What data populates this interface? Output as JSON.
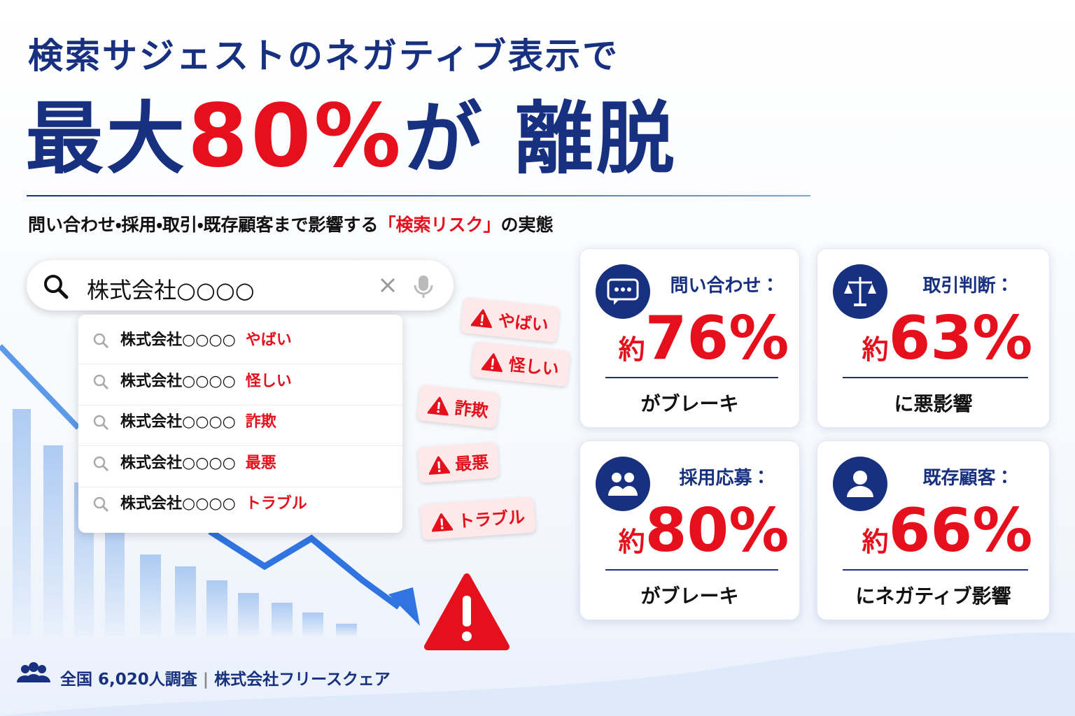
{
  "header": {
    "title": "検索サジェストのネガティブ表示で",
    "headline": {
      "pre": "最大",
      "highlight": "80%",
      "mid": "が",
      "post": "離脱"
    },
    "subtitle": {
      "pre": "問い合わせ・採用・取引・既存顧客まで影響する",
      "highlight": "「検索リスク」",
      "post": "の実態"
    }
  },
  "search": {
    "query": "株式会社○○○○",
    "suggestions": [
      {
        "base": "株式会社○○○○",
        "keyword": "やばい"
      },
      {
        "base": "株式会社○○○○",
        "keyword": "怪しい"
      },
      {
        "base": "株式会社○○○○",
        "keyword": "詐欺"
      },
      {
        "base": "株式会社○○○○",
        "keyword": "最悪"
      },
      {
        "base": "株式会社○○○○",
        "keyword": "トラブル"
      }
    ]
  },
  "tags": [
    "やばい",
    "怪しい",
    "詐欺",
    "最悪",
    "トラブル"
  ],
  "cards": [
    {
      "label": "問い合わせ：",
      "prefix": "約",
      "value": "76%",
      "caption": "がブレーキ"
    },
    {
      "label": "取引判断：",
      "prefix": "約",
      "value": "63%",
      "caption": "に悪影響"
    },
    {
      "label": "採用応募：",
      "prefix": "約",
      "value": "80%",
      "caption": "がブレーキ"
    },
    {
      "label": "既存顧客：",
      "prefix": "約",
      "value": "66%",
      "caption": "にネガティブ影響"
    }
  ],
  "footer": {
    "survey": "全国 6,020人調査",
    "company": "株式会社フリースクェア"
  }
}
